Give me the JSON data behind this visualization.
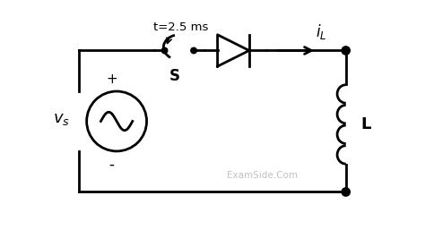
{
  "bg_color": "#ffffff",
  "line_color": "#000000",
  "watermark": "ExamSide.Com",
  "watermark_color": "#bbbbbb",
  "title_text": "t=2.5 ms",
  "switch_label": "S",
  "inductor_label": "L",
  "current_label": "i_L",
  "source_label": "v_s",
  "plus_label": "+",
  "minus_label": "-",
  "fig_width": 4.74,
  "fig_height": 2.57,
  "dpi": 100
}
